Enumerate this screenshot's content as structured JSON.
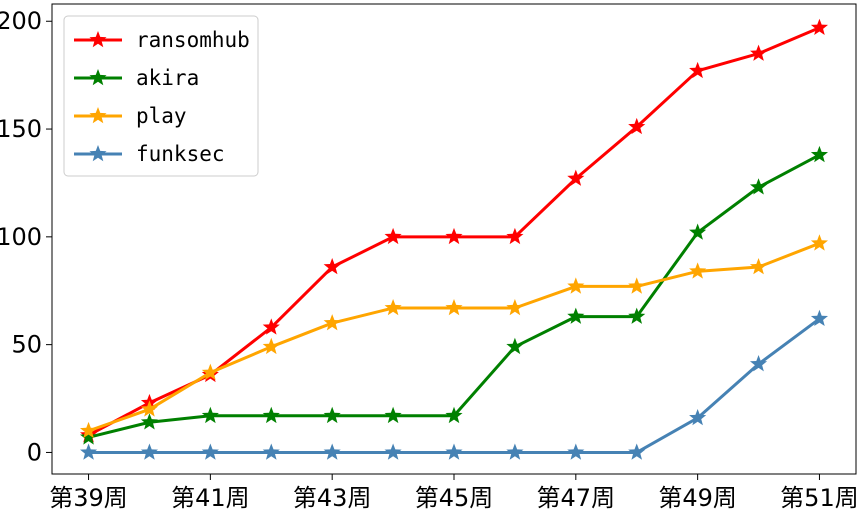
{
  "chart_data": {
    "type": "line",
    "x": [
      39,
      40,
      41,
      42,
      43,
      44,
      45,
      46,
      47,
      48,
      49,
      50,
      51
    ],
    "xticks": [
      {
        "x": 39,
        "label": "第39周"
      },
      {
        "x": 41,
        "label": "第41周"
      },
      {
        "x": 43,
        "label": "第43周"
      },
      {
        "x": 45,
        "label": "第45周"
      },
      {
        "x": 47,
        "label": "第47周"
      },
      {
        "x": 49,
        "label": "第49周"
      },
      {
        "x": 51,
        "label": "第51周"
      }
    ],
    "yticks": [
      0,
      50,
      100,
      150,
      200
    ],
    "xlim": [
      38.4,
      51.6
    ],
    "ylim": [
      -10,
      208
    ],
    "marker": "star",
    "grid": false,
    "legend_position": "top-left",
    "series": [
      {
        "name": "ransomhub",
        "color": "#ff0000",
        "values": [
          8,
          23,
          36,
          58,
          86,
          100,
          100,
          100,
          127,
          151,
          177,
          185,
          197
        ]
      },
      {
        "name": "akira",
        "color": "#008000",
        "values": [
          7,
          14,
          17,
          17,
          17,
          17,
          17,
          49,
          63,
          63,
          102,
          123,
          138
        ]
      },
      {
        "name": "play",
        "color": "#ffa500",
        "values": [
          10,
          20,
          37,
          49,
          60,
          67,
          67,
          67,
          77,
          77,
          84,
          86,
          97
        ]
      },
      {
        "name": "funksec",
        "color": "#4682b4",
        "values": [
          0,
          0,
          0,
          0,
          0,
          0,
          0,
          0,
          0,
          0,
          16,
          41,
          62
        ]
      }
    ]
  }
}
